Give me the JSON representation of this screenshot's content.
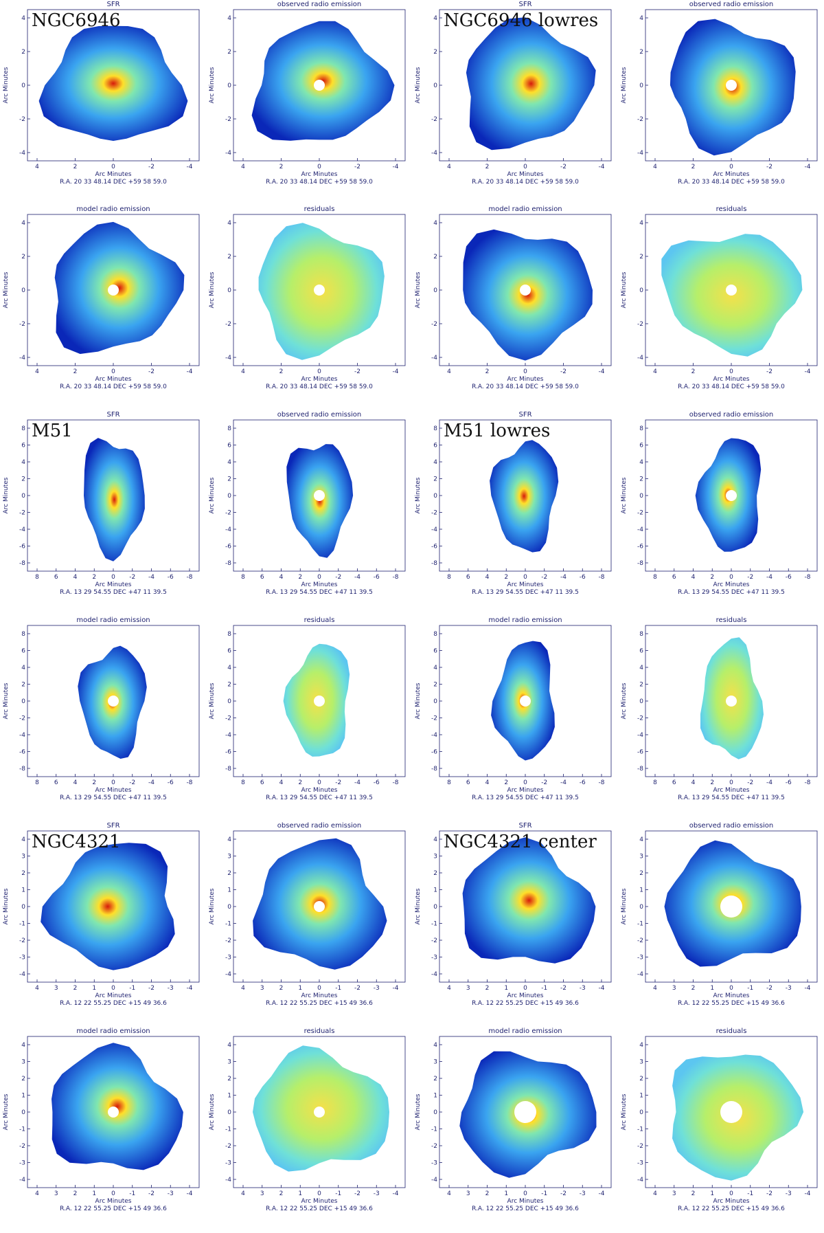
{
  "figure": {
    "axis_label": "Arc Minutes",
    "coord_prefix_ra": "R.A.",
    "coord_prefix_dec": "DEC",
    "rows": [
      {
        "galaxy_left": "NGC6946",
        "galaxy_right": "NGC6946 lowres",
        "ra": "20 33 48.14",
        "dec": "+59 58 59.0",
        "xticks": [
          "4",
          "2",
          "0",
          "-2",
          "-4"
        ],
        "yticks": [
          "4",
          "2",
          "0",
          "-2",
          "-4"
        ],
        "panels": [
          "SFR",
          "observed radio emission",
          "SFR",
          "observed radio emission"
        ]
      },
      {
        "galaxy_left": "",
        "galaxy_right": "",
        "ra": "20 33 48.14",
        "dec": "+59 58 59.0",
        "xticks": [
          "4",
          "2",
          "0",
          "-2",
          "-4"
        ],
        "yticks": [
          "4",
          "2",
          "0",
          "-2",
          "-4"
        ],
        "panels": [
          "model radio emission",
          "residuals",
          "model radio emission",
          "residuals"
        ]
      },
      {
        "galaxy_left": "M51",
        "galaxy_right": "M51 lowres",
        "ra": "13 29 54.55",
        "dec": "+47 11 39.5",
        "xticks": [
          "8",
          "6",
          "4",
          "2",
          "0",
          "-2",
          "-4",
          "-6",
          "-8"
        ],
        "yticks": [
          "8",
          "6",
          "4",
          "2",
          "0",
          "-2",
          "-4",
          "-6",
          "-8"
        ],
        "panels": [
          "SFR",
          "observed radio emission",
          "SFR",
          "observed radio emission"
        ]
      },
      {
        "galaxy_left": "",
        "galaxy_right": "",
        "ra": "13 29 54.55",
        "dec": "+47 11 39.5",
        "xticks": [
          "8",
          "6",
          "4",
          "2",
          "0",
          "-2",
          "-4",
          "-6",
          "-8"
        ],
        "yticks": [
          "8",
          "6",
          "4",
          "2",
          "0",
          "-2",
          "-4",
          "-6",
          "-8"
        ],
        "panels": [
          "model radio emission",
          "residuals",
          "model radio emission",
          "residuals"
        ]
      },
      {
        "galaxy_left": "NGC4321",
        "galaxy_right": "NGC4321 center",
        "ra": "12 22 55.25",
        "dec": "+15 49 36.6",
        "xticks": [
          "4",
          "3",
          "2",
          "1",
          "0",
          "-1",
          "-2",
          "-3",
          "-4"
        ],
        "yticks": [
          "4",
          "3",
          "2",
          "1",
          "0",
          "-1",
          "-2",
          "-3",
          "-4"
        ],
        "panels": [
          "SFR",
          "observed radio emission",
          "SFR",
          "observed radio emission"
        ]
      },
      {
        "galaxy_left": "",
        "galaxy_right": "",
        "ra": "12 22 55.25",
        "dec": "+15 49 36.6",
        "xticks": [
          "4",
          "3",
          "2",
          "1",
          "0",
          "-1",
          "-2",
          "-3",
          "-4"
        ],
        "yticks": [
          "4",
          "3",
          "2",
          "1",
          "0",
          "-1",
          "-2",
          "-3",
          "-4"
        ],
        "panels": [
          "model radio emission",
          "residuals",
          "model radio emission",
          "residuals"
        ]
      }
    ]
  }
}
